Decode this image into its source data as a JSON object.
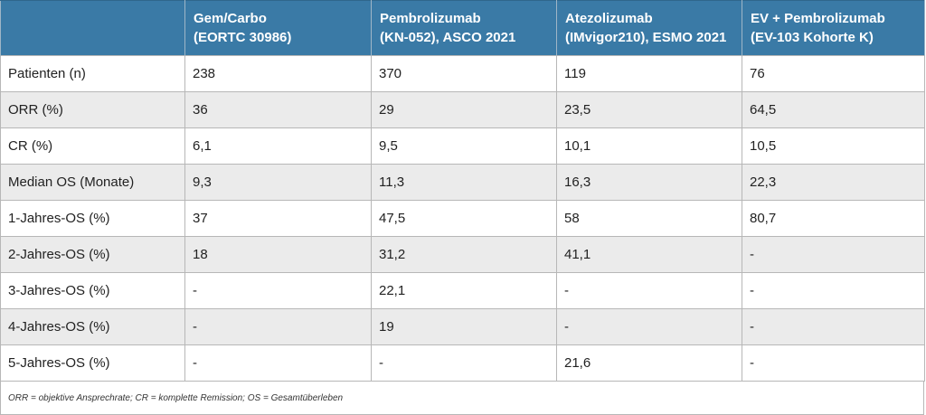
{
  "table": {
    "header": [
      {
        "line1": "",
        "line2": ""
      },
      {
        "line1": "Gem/Carbo",
        "line2": "(EORTC 30986)"
      },
      {
        "line1": "Pembrolizumab",
        "line2": "(KN-052), ASCO 2021"
      },
      {
        "line1": "Atezolizumab",
        "line2": "(IMvigor210), ESMO 2021"
      },
      {
        "line1": "EV + Pembrolizumab",
        "line2": "(EV-103 Kohorte K)"
      }
    ],
    "rows": [
      [
        "Patienten (n)",
        "238",
        "370",
        "119",
        "76"
      ],
      [
        "ORR (%)",
        "36",
        "29",
        "23,5",
        "64,5"
      ],
      [
        "CR (%)",
        "6,1",
        "9,5",
        "10,1",
        "10,5"
      ],
      [
        "Median OS (Monate)",
        "9,3",
        "11,3",
        "16,3",
        "22,3"
      ],
      [
        "1-Jahres-OS (%)",
        "37",
        "47,5",
        "58",
        "80,7"
      ],
      [
        "2-Jahres-OS (%)",
        "18",
        "31,2",
        "41,1",
        "-"
      ],
      [
        "3-Jahres-OS (%)",
        "-",
        "22,1",
        "-",
        "-"
      ],
      [
        "4-Jahres-OS (%)",
        "-",
        "19",
        "-",
        "-"
      ],
      [
        "5-Jahres-OS (%)",
        "-",
        "-",
        "21,6",
        "-"
      ]
    ],
    "footnote": "ORR = objektive Ansprechrate; CR = komplette Remission; OS = Gesamtüberleben",
    "colors": {
      "header_bg": "#3a7aa6",
      "header_text": "#ffffff",
      "row_alt_bg": "#ebebeb",
      "border": "#b7b7b7"
    }
  }
}
